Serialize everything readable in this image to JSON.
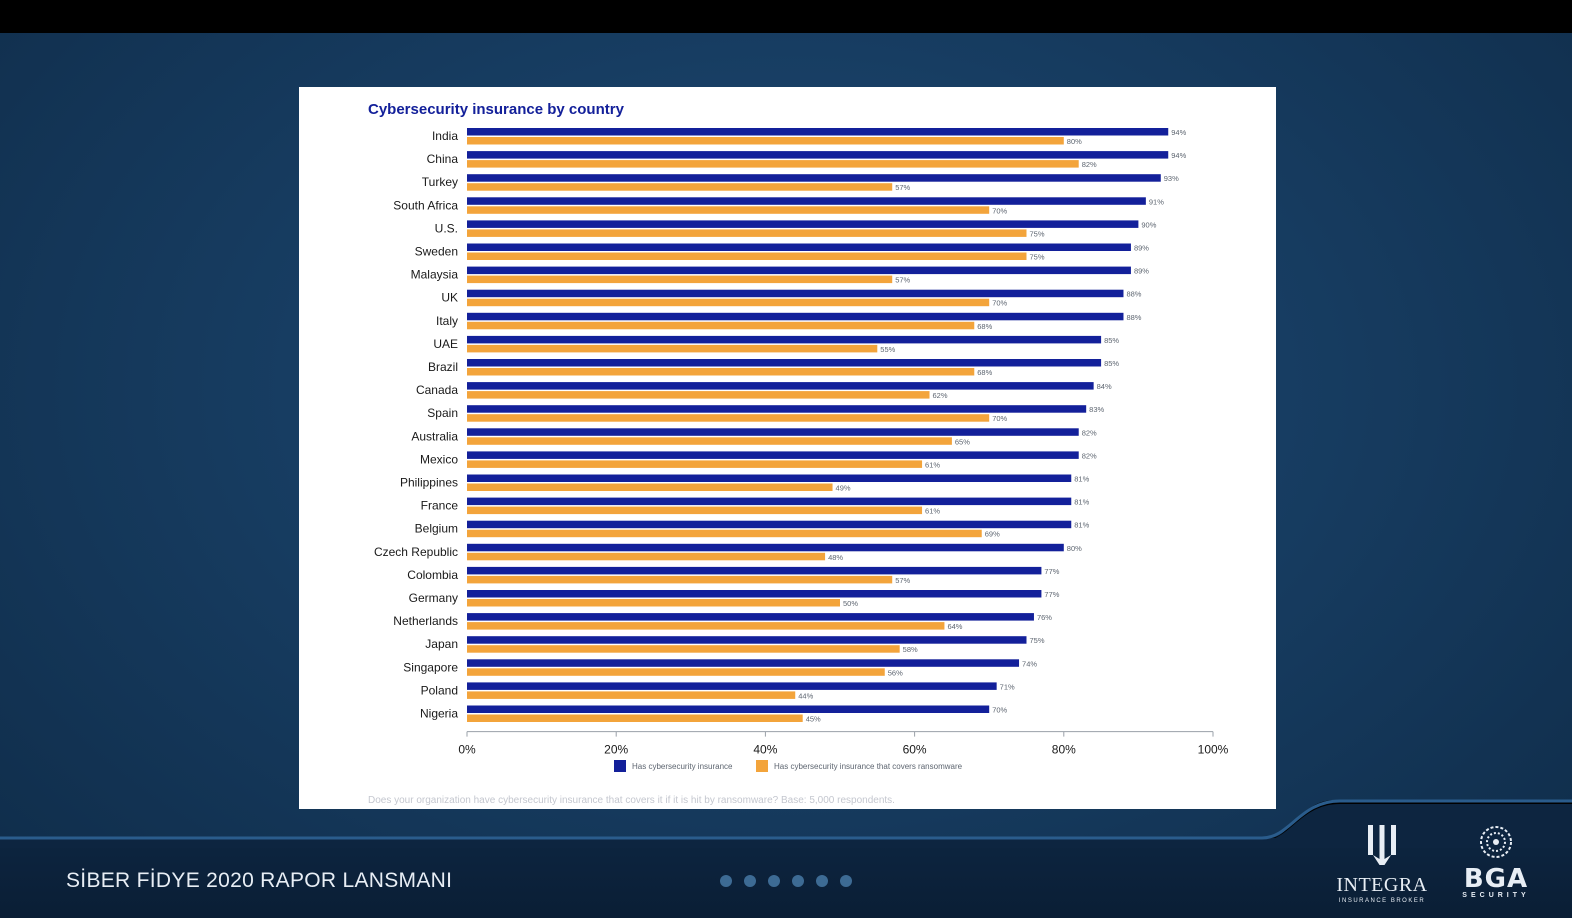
{
  "footer": {
    "title": "SİBER FİDYE 2020 RAPOR LANSMANI",
    "page_dots": 6,
    "integra_name": "INTEGRA",
    "integra_sub": "INSURANCE BROKER",
    "bga_name": "BGA",
    "bga_sub": "SECURITY"
  },
  "chart_data": {
    "type": "bar",
    "orientation": "horizontal",
    "title": "Cybersecurity insurance by country",
    "categories": [
      "India",
      "China",
      "Turkey",
      "South Africa",
      "U.S.",
      "Sweden",
      "Malaysia",
      "UK",
      "Italy",
      "UAE",
      "Brazil",
      "Canada",
      "Spain",
      "Australia",
      "Mexico",
      "Philippines",
      "France",
      "Belgium",
      "Czech Republic",
      "Colombia",
      "Germany",
      "Netherlands",
      "Japan",
      "Singapore",
      "Poland",
      "Nigeria"
    ],
    "series": [
      {
        "name": "Has cybersecurity insurance",
        "color": "#13209a",
        "values": [
          94,
          94,
          93,
          91,
          90,
          89,
          89,
          88,
          88,
          85,
          85,
          84,
          83,
          82,
          82,
          81,
          81,
          81,
          80,
          77,
          77,
          76,
          75,
          74,
          71,
          70
        ]
      },
      {
        "name": "Has cybersecurity insurance that covers ransomware",
        "color": "#f3a43b",
        "values": [
          80,
          82,
          57,
          70,
          75,
          75,
          57,
          70,
          68,
          55,
          68,
          62,
          70,
          65,
          61,
          49,
          61,
          69,
          48,
          57,
          50,
          64,
          58,
          56,
          44,
          45
        ]
      }
    ],
    "xlim": [
      0,
      100
    ],
    "xticks": [
      "0%",
      "20%",
      "40%",
      "60%",
      "80%",
      "100%"
    ],
    "value_suffix": "%",
    "legend_position": "bottom",
    "footnote": "Does your organization have cybersecurity insurance that covers it if it is hit by ransomware? Base: 5,000 respondents."
  }
}
